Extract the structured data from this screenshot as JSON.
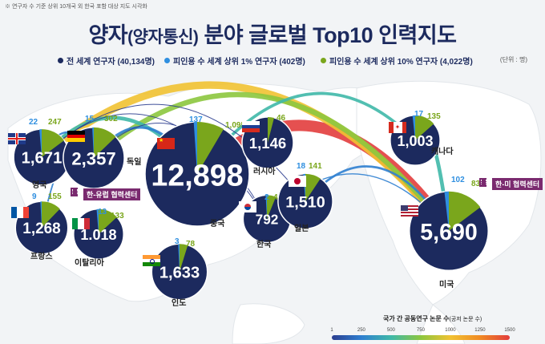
{
  "note": "※ 연구자 수 기준 상위 10개국 외 한국 포함 대상 지도 시각화",
  "title_main": "양자",
  "title_paren": "(양자통신)",
  "title_rest": " 분야 글로벌 Top10 인력지도",
  "legend": [
    {
      "label": "전 세계 연구자 (40,134명)",
      "color": "#1c2a5e"
    },
    {
      "label": "피인용 수 세계 상위 1% 연구자 (402명)",
      "color": "#2f8fe0"
    },
    {
      "label": "피인용 수 세계 상위 10% 연구자 (4,022명)",
      "color": "#7aa61c"
    }
  ],
  "unit": "(단위 : 명)",
  "colors": {
    "total": "#1c2a5e",
    "top1": "#2f8fe0",
    "top10": "#7aa61c",
    "center": "#7a2a6f"
  },
  "chart_data": {
    "type": "pie",
    "series": [
      {
        "name": "전 세계 연구자"
      },
      {
        "name": "피인용 수 세계 상위 1% 연구자"
      },
      {
        "name": "피인용 수 세계 상위 10% 연구자"
      }
    ],
    "countries": [
      {
        "name": "영국",
        "total": 1671,
        "total_label": "1,671",
        "top1": 22,
        "top10": 247,
        "flag": "uk"
      },
      {
        "name": "독일",
        "total": 2357,
        "total_label": "2,357",
        "top1": 15,
        "top10": 302,
        "flag": "de"
      },
      {
        "name": "중국",
        "total": 12898,
        "total_label": "12,898",
        "top1": 137,
        "top10": 1095,
        "top10_label": "1,095",
        "flag": "cn"
      },
      {
        "name": "러시아",
        "total": 1146,
        "total_label": "1,146",
        "top1": null,
        "top10": 46,
        "flag": "ru"
      },
      {
        "name": "캐나다",
        "total": 1003,
        "total_label": "1,003",
        "top1": 17,
        "top10": 135,
        "flag": "ca"
      },
      {
        "name": "프랑스",
        "total": 1268,
        "total_label": "1,268",
        "top1": 9,
        "top10": 155,
        "flag": "fr"
      },
      {
        "name": "이탈리아",
        "total": 1018,
        "total_label": "1.018",
        "top1": 13,
        "top10": 133,
        "flag": "it"
      },
      {
        "name": "한국",
        "total": 792,
        "total_label": "792",
        "top1": 2,
        "top10": 49,
        "flag": "kr"
      },
      {
        "name": "일본",
        "total": 1510,
        "total_label": "1,510",
        "top1": 18,
        "top10": 141,
        "flag": "jp"
      },
      {
        "name": "인도",
        "total": 1633,
        "total_label": "1,633",
        "top1": 3,
        "top10": 78,
        "flag": "in"
      },
      {
        "name": "미국",
        "total": 5690,
        "total_label": "5,690",
        "top1": 102,
        "top10": 839,
        "flag": "us"
      }
    ],
    "links": [
      {
        "from": "중국",
        "to": "미국",
        "value": 1500
      },
      {
        "from": "영국",
        "to": "미국",
        "value": 1000
      },
      {
        "from": "독일",
        "to": "미국",
        "value": 700
      },
      {
        "from": "중국",
        "to": "캐나다",
        "value": 400
      },
      {
        "from": "영국",
        "to": "중국",
        "value": 500
      },
      {
        "from": "독일",
        "to": "중국",
        "value": 350
      },
      {
        "from": "일본",
        "to": "미국",
        "value": 300
      },
      {
        "from": "캐나다",
        "to": "미국",
        "value": 500
      },
      {
        "from": "한국",
        "to": "미국",
        "value": 150
      },
      {
        "from": "영국",
        "to": "독일",
        "value": 250
      },
      {
        "from": "프랑스",
        "to": "독일",
        "value": 200
      },
      {
        "from": "영국",
        "to": "한국",
        "value": 20
      },
      {
        "from": "독일",
        "to": "한국",
        "value": 20
      },
      {
        "from": "영국",
        "to": "일본",
        "value": 30
      }
    ],
    "colorbar": {
      "title": "국가 간 공동연구 논문 수",
      "subtitle": "(공저 논문 수)",
      "ticks": [
        1,
        250,
        500,
        750,
        1000,
        1250,
        1500
      ],
      "range": [
        1,
        1500
      ]
    }
  },
  "centers": [
    {
      "label": "한-유럽 협력센터"
    },
    {
      "label": "한-미 협력센터"
    }
  ]
}
